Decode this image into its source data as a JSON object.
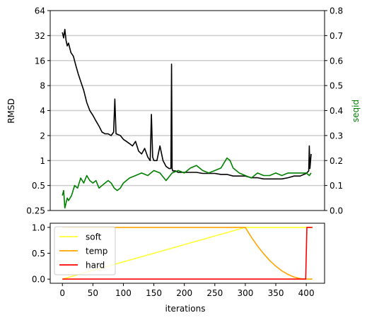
{
  "chart_data": [
    {
      "type": "line",
      "ylabel_left": "RMSD",
      "ylabel_right": "seqid",
      "y_left_scale": "log2",
      "ylim_left": [
        0.25,
        64
      ],
      "ylim_right": [
        0.0,
        0.8
      ],
      "xlim": [
        -20,
        430
      ],
      "yticks_left": [
        "0.25",
        "0.5",
        "1",
        "2",
        "4",
        "8",
        "16",
        "32",
        "64"
      ],
      "yticks_right": [
        "0.0",
        "0.1",
        "0.2",
        "0.3",
        "0.4",
        "0.5",
        "0.6",
        "0.7",
        "0.8"
      ],
      "grid": "horizontal",
      "series": [
        {
          "name": "",
          "axis": "left",
          "color": "#000000",
          "x": [
            0,
            2,
            4,
            6,
            8,
            10,
            14,
            18,
            22,
            26,
            30,
            35,
            40,
            45,
            50,
            55,
            60,
            65,
            70,
            75,
            80,
            84,
            86,
            88,
            95,
            100,
            105,
            110,
            115,
            120,
            125,
            130,
            135,
            140,
            144,
            146,
            148,
            150,
            155,
            160,
            165,
            170,
            175,
            178,
            179,
            180,
            181,
            185,
            190,
            200,
            210,
            220,
            230,
            240,
            250,
            260,
            270,
            280,
            290,
            300,
            310,
            320,
            330,
            340,
            350,
            360,
            370,
            380,
            390,
            400,
            404,
            405,
            406,
            408
          ],
          "y": [
            35,
            30,
            38,
            28,
            24,
            26,
            20,
            18,
            14,
            11,
            9,
            7,
            5,
            4,
            3.5,
            3,
            2.6,
            2.2,
            2.1,
            2.1,
            2.0,
            2.2,
            5.5,
            2.1,
            2.0,
            1.8,
            1.7,
            1.6,
            1.5,
            1.7,
            1.3,
            1.2,
            1.4,
            1.1,
            1.0,
            3.6,
            1.1,
            1.0,
            1.0,
            1.5,
            1.0,
            0.85,
            0.8,
            0.8,
            14.5,
            0.8,
            0.75,
            0.75,
            0.72,
            0.72,
            0.72,
            0.72,
            0.7,
            0.7,
            0.7,
            0.68,
            0.68,
            0.65,
            0.65,
            0.65,
            0.62,
            0.62,
            0.6,
            0.6,
            0.6,
            0.6,
            0.62,
            0.65,
            0.65,
            0.7,
            0.75,
            1.5,
            0.8,
            1.2
          ]
        },
        {
          "name": "",
          "axis": "right",
          "color": "#008000",
          "x": [
            0,
            2,
            4,
            6,
            8,
            10,
            15,
            20,
            25,
            30,
            35,
            40,
            45,
            50,
            55,
            60,
            65,
            70,
            75,
            80,
            85,
            90,
            95,
            100,
            110,
            120,
            130,
            140,
            150,
            160,
            170,
            180,
            190,
            200,
            210,
            220,
            230,
            240,
            250,
            260,
            265,
            270,
            275,
            280,
            290,
            300,
            310,
            320,
            330,
            340,
            350,
            360,
            370,
            380,
            390,
            400,
            405,
            408
          ],
          "y": [
            0.06,
            0.08,
            0.01,
            0.03,
            0.05,
            0.04,
            0.06,
            0.1,
            0.09,
            0.13,
            0.11,
            0.14,
            0.12,
            0.11,
            0.12,
            0.09,
            0.1,
            0.11,
            0.12,
            0.11,
            0.09,
            0.08,
            0.09,
            0.11,
            0.13,
            0.14,
            0.15,
            0.14,
            0.16,
            0.15,
            0.12,
            0.15,
            0.16,
            0.15,
            0.17,
            0.18,
            0.16,
            0.15,
            0.16,
            0.17,
            0.19,
            0.21,
            0.2,
            0.17,
            0.15,
            0.14,
            0.13,
            0.15,
            0.14,
            0.14,
            0.15,
            0.14,
            0.15,
            0.15,
            0.15,
            0.15,
            0.14,
            0.15
          ]
        }
      ]
    },
    {
      "type": "line",
      "xlabel": "iterations",
      "xlim": [
        -20,
        430
      ],
      "ylim": [
        -0.08,
        1.08
      ],
      "xticks": [
        "0",
        "50",
        "100",
        "150",
        "200",
        "250",
        "300",
        "350",
        "400"
      ],
      "yticks": [
        "0.0",
        "0.5",
        "1.0"
      ],
      "legend": "upper-left",
      "series": [
        {
          "name": "soft",
          "color": "#ffff33",
          "x": [
            0,
            300,
            300,
            410
          ],
          "y": [
            0.0,
            1.0,
            1.0,
            1.0
          ]
        },
        {
          "name": "temp",
          "color": "#ffa500",
          "x": [
            0,
            300,
            310,
            320,
            330,
            340,
            350,
            360,
            370,
            380,
            390,
            400,
            410
          ],
          "y": [
            1.0,
            1.0,
            0.81,
            0.64,
            0.49,
            0.36,
            0.25,
            0.16,
            0.09,
            0.04,
            0.01,
            0.0,
            0.0
          ]
        },
        {
          "name": "hard",
          "color": "#ff0000",
          "x": [
            0,
            399,
            401,
            410
          ],
          "y": [
            0.0,
            0.0,
            1.0,
            1.0
          ]
        }
      ]
    }
  ]
}
